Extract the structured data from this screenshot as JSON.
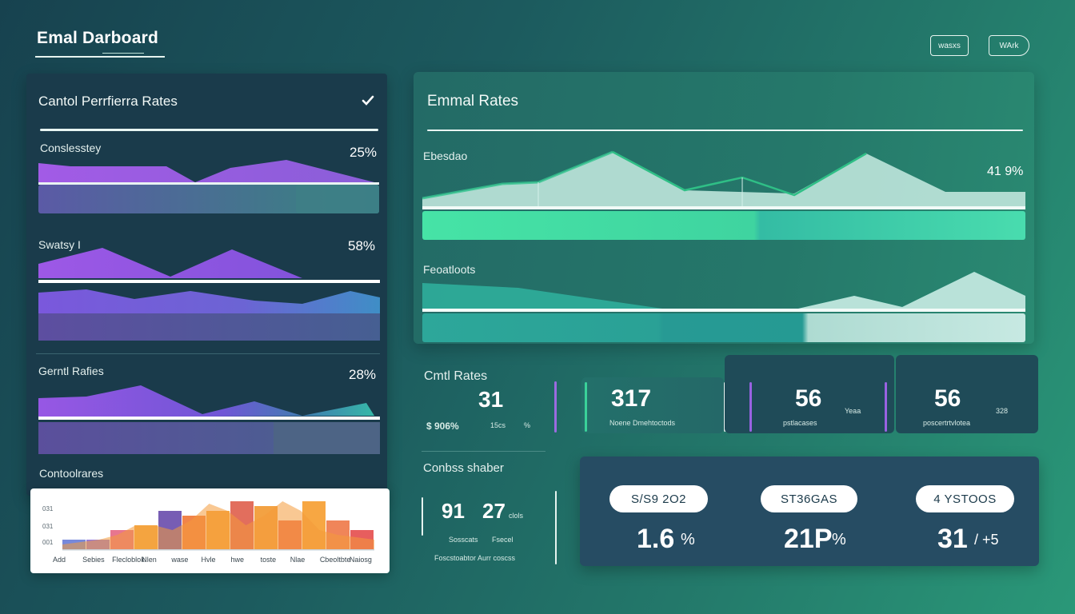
{
  "header": {
    "title": "Emal Darboard",
    "btn1": "wasxs",
    "btn2": "WArk"
  },
  "left_panel": {
    "title": "Cantol Perrfierra Rates",
    "check_icon": "check-icon",
    "metrics": [
      {
        "label": "Conslesstey",
        "value": "25%"
      },
      {
        "label": "Swatsy I",
        "value": "58%"
      },
      {
        "label": "Gerntl Rafies",
        "value": "28%"
      }
    ],
    "bottom_label": "Contoolrares"
  },
  "mini_chart": {
    "y_ticks": [
      "031",
      "031",
      "001"
    ],
    "x_labels": [
      "Add",
      "Sebies",
      "Flecloblok",
      "Nlen",
      "wase",
      "Hvle",
      "hwe",
      "toste",
      "Nlae",
      "Cbeoltbte",
      "Naiosg"
    ],
    "bar_values": [
      2,
      2,
      4,
      5,
      8,
      7,
      8,
      10,
      9,
      6,
      10,
      6,
      4
    ],
    "bar_colors": [
      "#6b7fd8",
      "#8d6fd6",
      "#e56a86",
      "#f2a838",
      "#6b4fae",
      "#f07a3a",
      "#f6a233",
      "#e0624f",
      "#f29a33",
      "#ee6a4a",
      "#f6a033",
      "#ef7b4b",
      "#e55050"
    ],
    "curve": [
      1,
      1.5,
      2,
      3,
      5,
      5,
      4,
      6,
      9.5,
      8,
      5,
      7,
      10,
      8,
      4,
      3,
      2.5,
      2
    ]
  },
  "rates_panel": {
    "title": "Emmal Rates",
    "section1_label": "Ebesdao",
    "section1_value": "41 9%",
    "section2_label": "Feoatloots"
  },
  "stats": {
    "title": "Cmtl Rates",
    "card1": {
      "value": "31",
      "sub1": "$ 906%",
      "sub2": "15cs",
      "sub3": "%"
    },
    "card2": {
      "value": "317",
      "sub": "Noene Dmehtoctods"
    },
    "card3": {
      "value": "56",
      "sub": "pstlacases",
      "side": "Yeaa"
    },
    "card4": {
      "value": "56",
      "sub": "poscertrtvlotea",
      "side": "328"
    }
  },
  "lower_stats": {
    "title": "Conbss shaber",
    "v1": "91",
    "v2": "27",
    "v2_unit": "clols",
    "sub1": "Sosscats",
    "sub2": "Fsecel",
    "footer": "Foscstoabtor Aurr coscss"
  },
  "bottom_card": {
    "items": [
      {
        "pill": "S/S9 2O2",
        "value": "1.6",
        "unit": "%"
      },
      {
        "pill": "ST36GAS",
        "value": "21P",
        "unit": "%"
      },
      {
        "pill": "4 YSTOOS",
        "value": "31",
        "unit": "/ +5"
      }
    ]
  },
  "colors": {
    "purple": "#a05ce8",
    "violet": "#7d5fe0",
    "mint": "#3ee0a0",
    "teal": "#2bb3a3"
  }
}
